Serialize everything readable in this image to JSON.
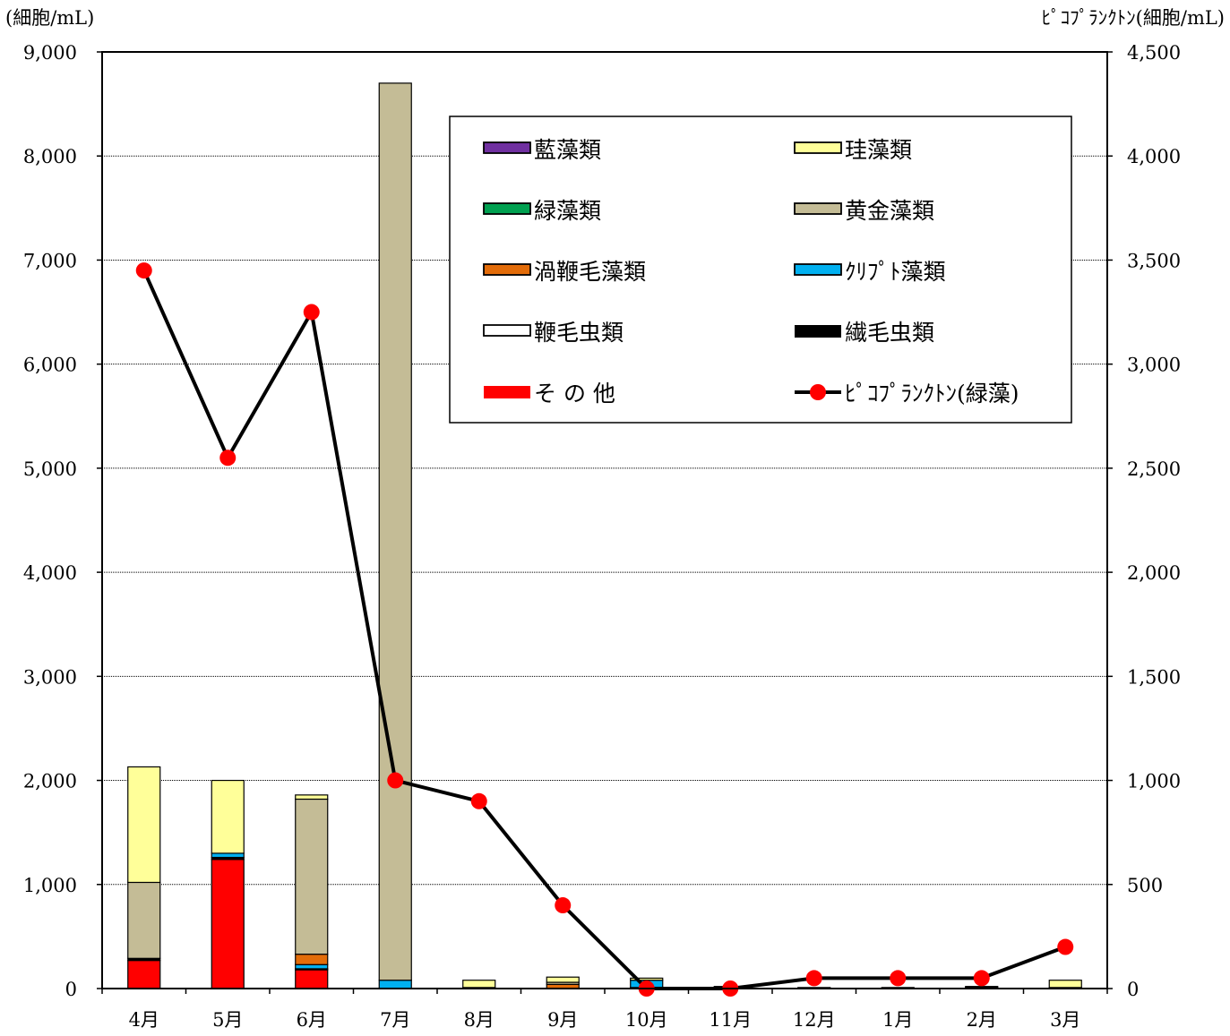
{
  "chart_data": {
    "type": "bar",
    "stacked": true,
    "categories": [
      "4月",
      "5月",
      "6月",
      "7月",
      "8月",
      "9月",
      "10月",
      "11月",
      "12月",
      "1月",
      "2月",
      "3月"
    ],
    "y_left": {
      "unit_label": "(細胞/mL)",
      "range": [
        0,
        9000
      ],
      "ticks": [
        "0",
        "1,000",
        "2,000",
        "3,000",
        "4,000",
        "5,000",
        "6,000",
        "7,000",
        "8,000",
        "9,000"
      ],
      "tick_values": [
        0,
        1000,
        2000,
        3000,
        4000,
        5000,
        6000,
        7000,
        8000,
        9000
      ]
    },
    "y_right": {
      "unit_label": "ﾋﾟｺﾌﾟﾗﾝｸﾄﾝ(細胞/mL)",
      "range": [
        0,
        4500
      ],
      "ticks": [
        "0",
        "500",
        "1,000",
        "1,500",
        "2,000",
        "2,500",
        "3,000",
        "3,500",
        "4,000",
        "4,500"
      ],
      "tick_values": [
        0,
        500,
        1000,
        1500,
        2000,
        2500,
        3000,
        3500,
        4000,
        4500
      ]
    },
    "grid": true,
    "legend_position": "top-right",
    "series": [
      {
        "name": "その他",
        "color": "#ff0000",
        "values": [
          270,
          1240,
          180,
          0,
          0,
          0,
          0,
          0,
          0,
          0,
          0,
          0
        ]
      },
      {
        "name": "繊毛虫類",
        "color": "#000000",
        "values": [
          20,
          20,
          10,
          0,
          10,
          0,
          10,
          10,
          10,
          10,
          10,
          10
        ]
      },
      {
        "name": "鞭毛虫類",
        "color": "#ffffff",
        "values": [
          0,
          0,
          0,
          0,
          0,
          0,
          0,
          0,
          0,
          0,
          0,
          0
        ]
      },
      {
        "name": "クリプト藻類",
        "color": "#00b0f0",
        "values": [
          0,
          40,
          40,
          80,
          0,
          0,
          70,
          0,
          0,
          0,
          0,
          0
        ]
      },
      {
        "name": "渦鞭毛藻類",
        "color": "#e36c09",
        "values": [
          0,
          0,
          100,
          0,
          0,
          40,
          0,
          0,
          0,
          0,
          0,
          0
        ]
      },
      {
        "name": "黄金藻類",
        "color": "#c4bc96",
        "values": [
          730,
          0,
          1490,
          8620,
          0,
          20,
          0,
          0,
          0,
          0,
          10,
          0
        ]
      },
      {
        "name": "緑藻類",
        "color": "#00a050",
        "values": [
          0,
          0,
          0,
          0,
          0,
          0,
          0,
          0,
          0,
          0,
          0,
          0
        ]
      },
      {
        "name": "珪藻類",
        "color": "#ffff99",
        "values": [
          1110,
          700,
          40,
          0,
          70,
          50,
          20,
          10,
          0,
          0,
          0,
          70
        ]
      },
      {
        "name": "藍藻類",
        "color": "#7030a0",
        "values": [
          0,
          0,
          0,
          0,
          0,
          0,
          0,
          0,
          0,
          0,
          0,
          0
        ]
      }
    ],
    "line_series": {
      "name": "ﾋﾟｺﾌﾟﾗﾝｸﾄﾝ(緑藻)",
      "axis": "right",
      "line_color": "#000000",
      "marker_color": "#ff0000",
      "values": [
        3450,
        2550,
        3250,
        1000,
        900,
        400,
        0,
        0,
        50,
        50,
        50,
        200
      ]
    },
    "legend": [
      {
        "label": "藍藻類",
        "series": "藍藻類",
        "kind": "box"
      },
      {
        "label": "珪藻類",
        "series": "珪藻類",
        "kind": "box"
      },
      {
        "label": "緑藻類",
        "series": "緑藻類",
        "kind": "box"
      },
      {
        "label": "黄金藻類",
        "series": "黄金藻類",
        "kind": "box"
      },
      {
        "label": "渦鞭毛藻類",
        "series": "渦鞭毛藻類",
        "kind": "box"
      },
      {
        "label": "ｸﾘﾌﾟﾄ藻類",
        "series": "クリプト藻類",
        "kind": "box"
      },
      {
        "label": " 鞭毛虫類",
        "series": "鞭毛虫類",
        "kind": "box"
      },
      {
        "label": " 繊毛虫類",
        "series": "繊毛虫類",
        "kind": "solid"
      },
      {
        "label": " そ の 他",
        "series": "その他",
        "kind": "solid"
      },
      {
        "label": "ﾋﾟｺﾌﾟﾗﾝｸﾄﾝ(緑藻)",
        "series": "line",
        "kind": "line"
      }
    ]
  }
}
